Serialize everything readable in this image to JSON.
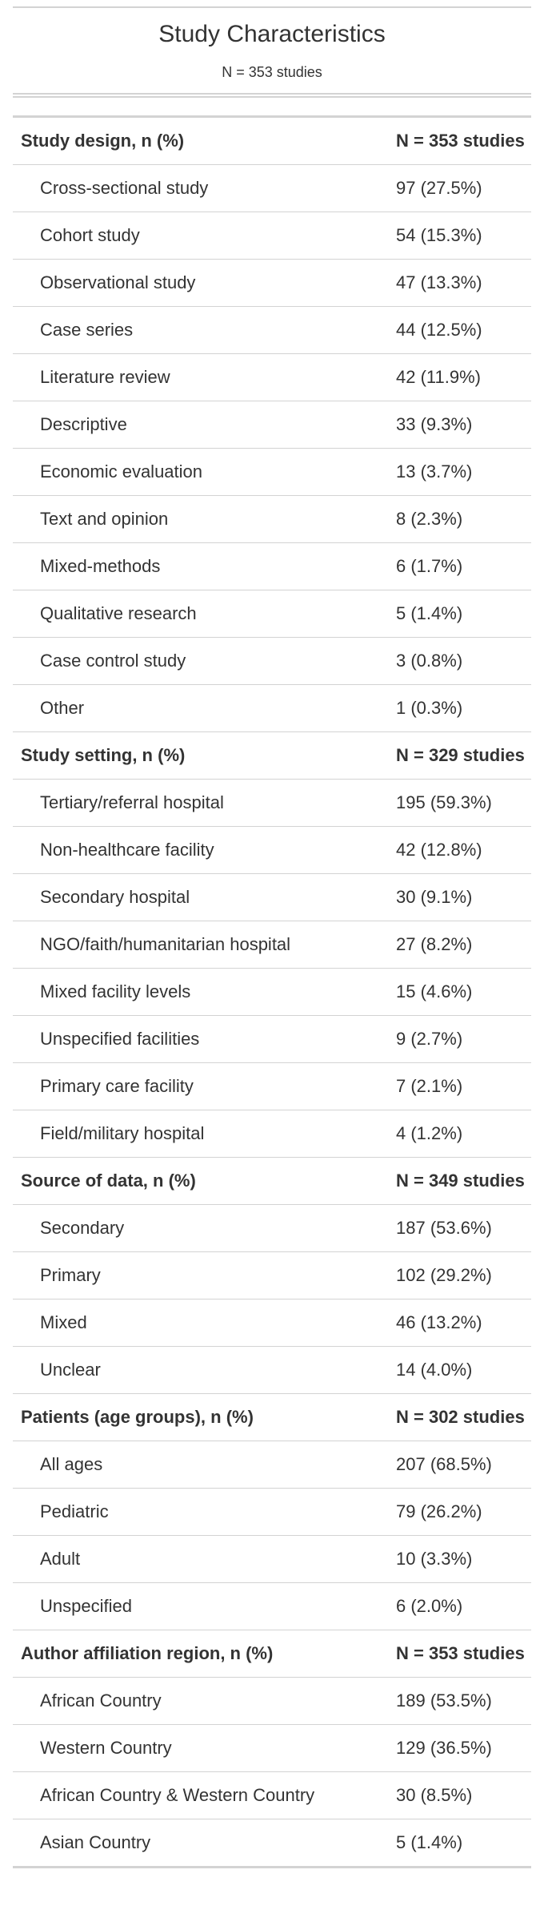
{
  "header": {
    "title": "Study Characteristics",
    "subtitle": "N = 353 studies"
  },
  "groups": [
    {
      "label": "Study design, n (%)",
      "n": "N = 353 studies",
      "rows": [
        {
          "label": "Cross-sectional study",
          "value": "97 (27.5%)"
        },
        {
          "label": "Cohort study",
          "value": "54 (15.3%)"
        },
        {
          "label": "Observational study",
          "value": "47 (13.3%)"
        },
        {
          "label": "Case series",
          "value": "44 (12.5%)"
        },
        {
          "label": "Literature review",
          "value": "42 (11.9%)"
        },
        {
          "label": "Descriptive",
          "value": "33 (9.3%)"
        },
        {
          "label": "Economic evaluation",
          "value": "13 (3.7%)"
        },
        {
          "label": "Text and opinion",
          "value": "8 (2.3%)"
        },
        {
          "label": "Mixed-methods",
          "value": "6 (1.7%)"
        },
        {
          "label": "Qualitative research",
          "value": "5 (1.4%)"
        },
        {
          "label": "Case control study",
          "value": "3 (0.8%)"
        },
        {
          "label": "Other",
          "value": "1 (0.3%)"
        }
      ]
    },
    {
      "label": "Study setting, n (%)",
      "n": "N = 329 studies",
      "rows": [
        {
          "label": "Tertiary/referral hospital",
          "value": "195 (59.3%)"
        },
        {
          "label": "Non-healthcare facility",
          "value": "42 (12.8%)"
        },
        {
          "label": "Secondary hospital",
          "value": "30 (9.1%)"
        },
        {
          "label": "NGO/faith/humanitarian hospital",
          "value": "27 (8.2%)"
        },
        {
          "label": "Mixed facility levels",
          "value": "15 (4.6%)"
        },
        {
          "label": "Unspecified facilities",
          "value": "9 (2.7%)"
        },
        {
          "label": "Primary care facility",
          "value": "7 (2.1%)"
        },
        {
          "label": "Field/military hospital",
          "value": "4 (1.2%)"
        }
      ]
    },
    {
      "label": "Source of data, n (%)",
      "n": "N = 349 studies",
      "rows": [
        {
          "label": "Secondary",
          "value": "187 (53.6%)"
        },
        {
          "label": "Primary",
          "value": "102 (29.2%)"
        },
        {
          "label": "Mixed",
          "value": "46 (13.2%)"
        },
        {
          "label": "Unclear",
          "value": "14 (4.0%)"
        }
      ]
    },
    {
      "label": "Patients (age groups), n (%)",
      "n": "N = 302 studies",
      "rows": [
        {
          "label": "All ages",
          "value": "207 (68.5%)"
        },
        {
          "label": "Pediatric",
          "value": "79 (26.2%)"
        },
        {
          "label": "Adult",
          "value": "10 (3.3%)"
        },
        {
          "label": "Unspecified",
          "value": "6 (2.0%)"
        }
      ]
    },
    {
      "label": "Author affiliation region, n (%)",
      "n": "N = 353 studies",
      "rows": [
        {
          "label": "African Country",
          "value": "189 (53.5%)"
        },
        {
          "label": "Western Country",
          "value": "129 (36.5%)"
        },
        {
          "label": "African Country & Western Country",
          "value": "30 (8.5%)"
        },
        {
          "label": "Asian Country",
          "value": "5 (1.4%)"
        }
      ]
    }
  ]
}
